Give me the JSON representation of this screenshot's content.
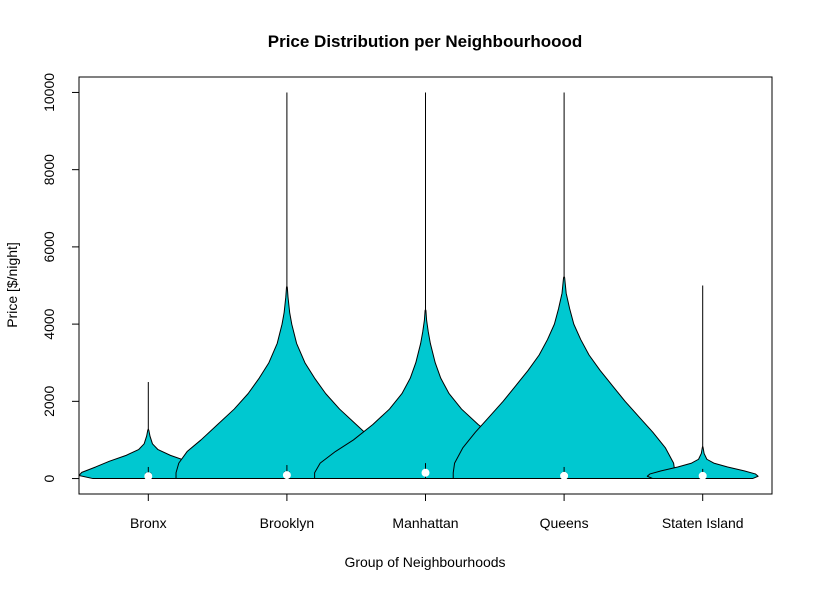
{
  "chart_data": {
    "type": "violin",
    "title": "Price Distribution per Neighbourhoood",
    "xlabel": "Group of Neighbourhoods",
    "ylabel": "Price [$/night]",
    "ylim": [
      -400,
      10400
    ],
    "yticks": [
      0,
      2000,
      4000,
      6000,
      8000,
      10000
    ],
    "grid": false,
    "legend": "none",
    "fill_color": "#00C8D0",
    "categories": [
      "Bronx",
      "Brooklyn",
      "Manhattan",
      "Queens",
      "Staten Island"
    ],
    "series": [
      {
        "max": 2500,
        "median": 60,
        "box": [
          40,
          150,
          0,
          300
        ],
        "profile": [
          [
            0,
            0.4
          ],
          [
            80,
            0.5
          ],
          [
            160,
            0.48
          ],
          [
            300,
            0.38
          ],
          [
            450,
            0.28
          ],
          [
            600,
            0.16
          ],
          [
            750,
            0.07
          ],
          [
            900,
            0.03
          ],
          [
            1100,
            0.012
          ],
          [
            1250,
            0.004
          ]
        ]
      },
      {
        "max": 10000,
        "median": 90,
        "box": [
          60,
          180,
          0,
          350
        ],
        "profile": [
          [
            0,
            0.8
          ],
          [
            150,
            0.8
          ],
          [
            400,
            0.78
          ],
          [
            700,
            0.72
          ],
          [
            1000,
            0.62
          ],
          [
            1400,
            0.5
          ],
          [
            1800,
            0.38
          ],
          [
            2200,
            0.28
          ],
          [
            2600,
            0.2
          ],
          [
            3000,
            0.13
          ],
          [
            3500,
            0.07
          ],
          [
            4000,
            0.035
          ],
          [
            4300,
            0.02
          ],
          [
            4700,
            0.008
          ],
          [
            4950,
            0.003
          ]
        ]
      },
      {
        "max": 10000,
        "median": 150,
        "box": [
          80,
          220,
          0,
          400
        ],
        "profile": [
          [
            0,
            0.8
          ],
          [
            150,
            0.8
          ],
          [
            400,
            0.76
          ],
          [
            700,
            0.65
          ],
          [
            1000,
            0.52
          ],
          [
            1400,
            0.38
          ],
          [
            1800,
            0.26
          ],
          [
            2200,
            0.17
          ],
          [
            2600,
            0.11
          ],
          [
            3000,
            0.07
          ],
          [
            3500,
            0.035
          ],
          [
            3800,
            0.02
          ],
          [
            4100,
            0.008
          ],
          [
            4350,
            0.003
          ]
        ]
      },
      {
        "max": 10000,
        "median": 70,
        "box": [
          50,
          150,
          0,
          300
        ],
        "profile": [
          [
            0,
            0.8
          ],
          [
            150,
            0.8
          ],
          [
            400,
            0.79
          ],
          [
            800,
            0.73
          ],
          [
            1200,
            0.64
          ],
          [
            1600,
            0.54
          ],
          [
            2000,
            0.44
          ],
          [
            2400,
            0.35
          ],
          [
            2800,
            0.26
          ],
          [
            3200,
            0.18
          ],
          [
            3600,
            0.12
          ],
          [
            4000,
            0.07
          ],
          [
            4400,
            0.04
          ],
          [
            4800,
            0.015
          ],
          [
            5200,
            0.004
          ]
        ]
      },
      {
        "max": 5000,
        "median": 70,
        "box": [
          40,
          120,
          0,
          250
        ],
        "profile": [
          [
            0,
            0.36
          ],
          [
            60,
            0.4
          ],
          [
            120,
            0.38
          ],
          [
            200,
            0.3
          ],
          [
            300,
            0.18
          ],
          [
            400,
            0.08
          ],
          [
            500,
            0.03
          ],
          [
            650,
            0.01
          ],
          [
            800,
            0.003
          ]
        ]
      }
    ]
  }
}
